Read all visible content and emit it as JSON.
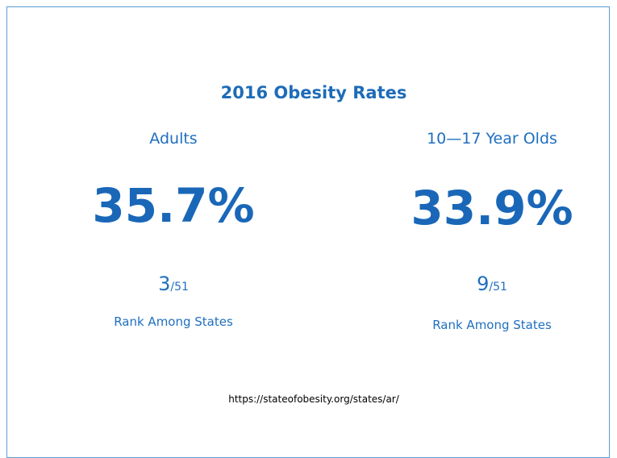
{
  "title": "2016 Obesity Rates",
  "panels": [
    {
      "label": "Adults",
      "value": "35.7%",
      "rank": "3",
      "rank_of": "/51",
      "rank_caption": "Rank Among States"
    },
    {
      "label": "10—17 Year Olds",
      "value": "33.9%",
      "rank": "9",
      "rank_of": "/51",
      "rank_caption": "Rank Among States"
    }
  ],
  "source": "https://stateofobesity.org/states/ar/"
}
